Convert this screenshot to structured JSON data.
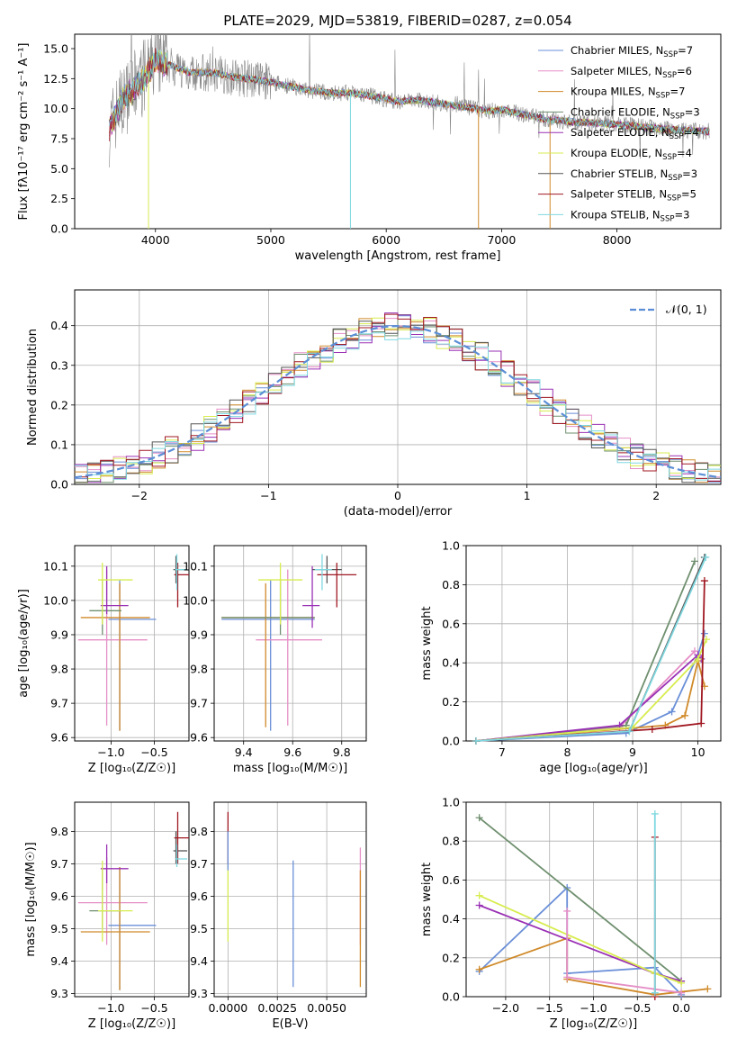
{
  "colors": {
    "Chabrier MILES": "#6a8fd8",
    "Salpeter MILES": "#e58fc6",
    "Kroupa MILES": "#d08a2a",
    "Chabrier ELODIE": "#6f8f6f",
    "Salpeter ELODIE": "#9a30b5",
    "Kroupa ELODIE": "#d8ec50",
    "Chabrier STELIB": "#555555",
    "Salpeter STELIB": "#a01822",
    "Kroupa STELIB": "#7fd8e0",
    "spectrum": "#888888",
    "gauss": "#5b8ed6"
  },
  "chart_data": [
    {
      "id": "spectrum",
      "type": "line",
      "title": "PLATE=2029, MJD=53819, FIBERID=0287, z=0.054",
      "xlabel": "wavelength [Angstrom, rest frame]",
      "ylabel": "Flux [fλ10⁻¹⁷ erg cm⁻² s⁻¹ A⁻¹]",
      "xlim": [
        3300,
        8900
      ],
      "ylim": [
        0,
        16.2
      ],
      "xticks": [
        "4000",
        "5000",
        "6000",
        "7000",
        "8000"
      ],
      "yticks": [
        "0.0",
        "2.5",
        "5.0",
        "7.5",
        "10.0",
        "12.5",
        "15.0"
      ],
      "legend": [
        "Chabrier MILES, N_SSP=7",
        "Salpeter MILES, N_SSP=6",
        "Kroupa MILES, N_SSP=7",
        "Chabrier ELODIE, N_SSP=3",
        "Salpeter ELODIE, N_SSP=4",
        "Kroupa ELODIE, N_SSP=4",
        "Chabrier STELIB, N_SSP=3",
        "Salpeter STELIB, N_SSP=5",
        "Kroupa STELIB, N_SSP=3"
      ],
      "continuum": [
        [
          3600,
          8.3
        ],
        [
          3700,
          10.5
        ],
        [
          3800,
          11.5
        ],
        [
          3900,
          12.6
        ],
        [
          4000,
          13.9
        ],
        [
          4100,
          13.7
        ],
        [
          4300,
          13.0
        ],
        [
          4500,
          13.0
        ],
        [
          4700,
          12.6
        ],
        [
          4900,
          12.4
        ],
        [
          5100,
          12.0
        ],
        [
          5300,
          11.6
        ],
        [
          5500,
          11.3
        ],
        [
          5700,
          11.3
        ],
        [
          5900,
          11.0
        ],
        [
          6100,
          10.6
        ],
        [
          6300,
          10.7
        ],
        [
          6500,
          10.4
        ],
        [
          6700,
          10.1
        ],
        [
          6900,
          9.8
        ],
        [
          7000,
          9.9
        ],
        [
          7200,
          9.5
        ],
        [
          7400,
          9.1
        ],
        [
          7600,
          8.9
        ],
        [
          7800,
          8.8
        ],
        [
          8000,
          8.7
        ],
        [
          8200,
          8.5
        ],
        [
          8400,
          8.3
        ],
        [
          8600,
          8.2
        ],
        [
          8800,
          8.1
        ]
      ]
    },
    {
      "id": "residuals",
      "type": "step",
      "xlabel": "(data-model)/error",
      "ylabel": "Normed distribution",
      "xlim": [
        -2.5,
        2.5
      ],
      "ylim": [
        0,
        0.49
      ],
      "xticks": [
        "−2",
        "−1",
        "0",
        "1",
        "2"
      ],
      "yticks": [
        "0.0",
        "0.1",
        "0.2",
        "0.3",
        "0.4"
      ],
      "legend": "𝒩(0, 1)",
      "bins_from": -2.5,
      "bin_width": 0.1
    },
    {
      "id": "age-vs-Z",
      "type": "errorbar",
      "xlabel": "Z [log₁₀(Z/Z☉)]",
      "ylabel": "age  [log₁₀(age/yr)]",
      "xlim": [
        -1.42,
        -0.1
      ],
      "ylim": [
        9.59,
        10.16
      ],
      "xticks": [
        "−1.0",
        "−0.5"
      ],
      "yticks": [
        "9.6",
        "9.7",
        "9.8",
        "9.9",
        "10.0",
        "10.1"
      ],
      "points": [
        {
          "m": "Chabrier MILES",
          "x": -0.9,
          "xe": [
            -1.03,
            -0.48
          ],
          "y": 9.945,
          "ye": [
            9.62,
            10.06
          ]
        },
        {
          "m": "Salpeter MILES",
          "x": -1.05,
          "xe": [
            -1.38,
            -0.58
          ],
          "y": 9.885,
          "ye": [
            9.635,
            10.09
          ]
        },
        {
          "m": "Kroupa MILES",
          "x": -0.9,
          "xe": [
            -1.35,
            -0.55
          ],
          "y": 9.95,
          "ye": [
            9.62,
            10.05
          ]
        },
        {
          "m": "Chabrier ELODIE",
          "x": -1.1,
          "xe": [
            -1.25,
            -0.88
          ],
          "y": 9.97,
          "ye": [
            9.9,
            10.06
          ]
        },
        {
          "m": "Salpeter ELODIE",
          "x": -1.05,
          "xe": [
            -1.12,
            -0.8
          ],
          "y": 9.985,
          "ye": [
            9.96,
            10.1
          ]
        },
        {
          "m": "Kroupa ELODIE",
          "x": -1.1,
          "xe": [
            -1.15,
            -0.75
          ],
          "y": 10.06,
          "ye": [
            9.93,
            10.11
          ]
        },
        {
          "m": "Chabrier STELIB",
          "x": -0.25,
          "xe": [
            -0.28,
            -0.12
          ],
          "y": 10.09,
          "ye": [
            10.05,
            10.13
          ]
        },
        {
          "m": "Salpeter STELIB",
          "x": -0.23,
          "xe": [
            -0.27,
            -0.1
          ],
          "y": 10.075,
          "ye": [
            9.98,
            10.11
          ]
        },
        {
          "m": "Kroupa STELIB",
          "x": -0.24,
          "xe": [
            -0.26,
            -0.12
          ],
          "y": 10.09,
          "ye": [
            10.03,
            10.135
          ]
        }
      ]
    },
    {
      "id": "age-vs-mass",
      "type": "errorbar",
      "xlabel": "mass [log₁₀(M/M☉)]",
      "ylabel": "",
      "xlim": [
        9.28,
        9.9
      ],
      "ylim": [
        9.59,
        10.16
      ],
      "xticks": [
        "9.4",
        "9.6",
        "9.8"
      ],
      "yticks": [
        "9.6",
        "9.7",
        "9.8",
        "9.9",
        "10.0",
        "10.1"
      ],
      "points": [
        {
          "m": "Chabrier MILES",
          "x": 9.51,
          "xe": [
            9.31,
            9.69
          ],
          "y": 9.945,
          "ye": [
            9.62,
            10.06
          ]
        },
        {
          "m": "Salpeter MILES",
          "x": 9.58,
          "xe": [
            9.45,
            9.72
          ],
          "y": 9.885,
          "ye": [
            9.635,
            10.09
          ]
        },
        {
          "m": "Kroupa MILES",
          "x": 9.49,
          "xe": [
            9.31,
            9.69
          ],
          "y": 9.95,
          "ye": [
            9.63,
            10.05
          ]
        },
        {
          "m": "Chabrier ELODIE",
          "x": 9.55,
          "xe": [
            9.31,
            9.69
          ],
          "y": 9.95,
          "ye": [
            9.9,
            10.06
          ]
        },
        {
          "m": "Salpeter ELODIE",
          "x": 9.68,
          "xe": [
            9.64,
            9.71
          ],
          "y": 9.985,
          "ye": [
            9.92,
            10.1
          ]
        },
        {
          "m": "Kroupa ELODIE",
          "x": 9.55,
          "xe": [
            9.46,
            9.64
          ],
          "y": 10.06,
          "ye": [
            9.93,
            10.11
          ]
        },
        {
          "m": "Chabrier STELIB",
          "x": 9.74,
          "xe": [
            9.68,
            9.8
          ],
          "y": 10.09,
          "ye": [
            10.05,
            10.13
          ]
        },
        {
          "m": "Salpeter STELIB",
          "x": 9.78,
          "xe": [
            9.7,
            9.86
          ],
          "y": 10.075,
          "ye": [
            9.98,
            10.11
          ]
        },
        {
          "m": "Kroupa STELIB",
          "x": 9.72,
          "xe": [
            9.69,
            9.76
          ],
          "y": 10.09,
          "ye": [
            10.03,
            10.135
          ]
        }
      ]
    },
    {
      "id": "weight-vs-age",
      "type": "line",
      "xlabel": "age  [log₁₀(age/yr)]",
      "ylabel": "mass weight",
      "xlim": [
        6.45,
        10.35
      ],
      "ylim": [
        0,
        1.0
      ],
      "xticks": [
        "7",
        "8",
        "9",
        "10"
      ],
      "yticks": [
        "0.0",
        "0.2",
        "0.4",
        "0.6",
        "0.8",
        "1.0"
      ],
      "series": [
        {
          "m": "Chabrier MILES",
          "pts": [
            [
              6.6,
              0
            ],
            [
              8.9,
              0.04
            ],
            [
              9.6,
              0.15
            ],
            [
              10.0,
              0.44
            ],
            [
              10.1,
              0.55
            ]
          ]
        },
        {
          "m": "Salpeter MILES",
          "pts": [
            [
              6.6,
              0
            ],
            [
              8.8,
              0.07
            ],
            [
              9.95,
              0.46
            ]
          ]
        },
        {
          "m": "Kroupa MILES",
          "pts": [
            [
              6.6,
              0
            ],
            [
              9.5,
              0.08
            ],
            [
              9.8,
              0.13
            ],
            [
              10.0,
              0.41
            ],
            [
              10.1,
              0.28
            ]
          ]
        },
        {
          "m": "Chabrier ELODIE",
          "pts": [
            [
              6.6,
              0
            ],
            [
              8.9,
              0.08
            ],
            [
              9.95,
              0.92
            ]
          ]
        },
        {
          "m": "Salpeter ELODIE",
          "pts": [
            [
              6.6,
              0
            ],
            [
              8.8,
              0.08
            ],
            [
              10.0,
              0.44
            ],
            [
              10.05,
              0.42
            ]
          ]
        },
        {
          "m": "Kroupa ELODIE",
          "pts": [
            [
              6.6,
              0
            ],
            [
              9.0,
              0.07
            ],
            [
              10.0,
              0.42
            ],
            [
              10.13,
              0.52
            ]
          ]
        },
        {
          "m": "Chabrier STELIB",
          "pts": [
            [
              6.6,
              0
            ],
            [
              8.95,
              0.05
            ],
            [
              10.1,
              0.94
            ]
          ]
        },
        {
          "m": "Salpeter STELIB",
          "pts": [
            [
              6.6,
              0
            ],
            [
              9.3,
              0.06
            ],
            [
              10.05,
              0.09
            ],
            [
              10.1,
              0.82
            ]
          ]
        },
        {
          "m": "Kroupa STELIB",
          "pts": [
            [
              6.6,
              0
            ],
            [
              8.95,
              0.05
            ],
            [
              10.12,
              0.94
            ]
          ]
        }
      ]
    },
    {
      "id": "mass-vs-Z",
      "type": "errorbar",
      "xlabel": "Z [log₁₀(Z/Z☉)]",
      "ylabel": "mass [log₁₀(M/M☉)]",
      "xlim": [
        -1.42,
        -0.1
      ],
      "ylim": [
        9.29,
        9.89
      ],
      "xticks": [
        "−1.0",
        "−0.5"
      ],
      "yticks": [
        "9.3",
        "9.4",
        "9.5",
        "9.6",
        "9.7",
        "9.8"
      ],
      "points": [
        {
          "m": "Chabrier MILES",
          "x": -0.9,
          "xe": [
            -1.03,
            -0.48
          ],
          "y": 9.51,
          "ye": [
            9.31,
            9.69
          ]
        },
        {
          "m": "Salpeter MILES",
          "x": -1.05,
          "xe": [
            -1.38,
            -0.58
          ],
          "y": 9.58,
          "ye": [
            9.45,
            9.72
          ]
        },
        {
          "m": "Kroupa MILES",
          "x": -0.9,
          "xe": [
            -1.35,
            -0.55
          ],
          "y": 9.49,
          "ye": [
            9.31,
            9.69
          ]
        },
        {
          "m": "Chabrier ELODIE",
          "x": -1.1,
          "xe": [
            -1.25,
            -0.88
          ],
          "y": 9.555,
          "ye": [
            9.5,
            9.69
          ]
        },
        {
          "m": "Salpeter ELODIE",
          "x": -1.05,
          "xe": [
            -1.12,
            -0.8
          ],
          "y": 9.685,
          "ye": [
            9.64,
            9.76
          ]
        },
        {
          "m": "Kroupa ELODIE",
          "x": -1.1,
          "xe": [
            -1.15,
            -0.75
          ],
          "y": 9.555,
          "ye": [
            9.46,
            9.71
          ]
        },
        {
          "m": "Chabrier STELIB",
          "x": -0.25,
          "xe": [
            -0.28,
            -0.12
          ],
          "y": 9.74,
          "ye": [
            9.7,
            9.8
          ]
        },
        {
          "m": "Salpeter STELIB",
          "x": -0.23,
          "xe": [
            -0.27,
            -0.1
          ],
          "y": 9.78,
          "ye": [
            9.7,
            9.86
          ]
        },
        {
          "m": "Kroupa STELIB",
          "x": -0.24,
          "xe": [
            -0.26,
            -0.12
          ],
          "y": 9.715,
          "ye": [
            9.69,
            9.76
          ]
        }
      ]
    },
    {
      "id": "mass-vs-ebv",
      "type": "errorbar",
      "xlabel": "E(B-V)",
      "ylabel": "",
      "xlim": [
        -0.0007,
        0.007
      ],
      "ylim": [
        9.29,
        9.89
      ],
      "xticks": [
        "0.0000",
        "0.0025",
        "0.0050"
      ],
      "yticks": [
        "9.3",
        "9.4",
        "9.5",
        "9.6",
        "9.7",
        "9.8"
      ],
      "points": [
        {
          "m": "Chabrier MILES",
          "x": 0.0033,
          "y": 9.51,
          "ye": [
            9.32,
            9.71
          ]
        },
        {
          "m": "Salpeter MILES",
          "x": 0.0067,
          "y": 9.6,
          "ye": [
            9.45,
            9.75
          ]
        },
        {
          "m": "Kroupa MILES",
          "x": 0.0067,
          "y": 9.5,
          "ye": [
            9.32,
            9.68
          ]
        },
        {
          "m": "Kroupa ELODIE",
          "x": 0.0,
          "y": 9.56,
          "ye": [
            9.46,
            9.7
          ]
        },
        {
          "m": "Salpeter STELIB",
          "x": 0.0,
          "y": 9.78,
          "ye": [
            9.7,
            9.86
          ]
        },
        {
          "m": "Chabrier MILES",
          "x": 0.0,
          "y": 9.74,
          "ye": [
            9.68,
            9.8
          ]
        }
      ]
    },
    {
      "id": "weight-vs-Z",
      "type": "line",
      "xlabel": "Z [log₁₀(Z/Z☉)]",
      "ylabel": "mass weight",
      "xlim": [
        -2.45,
        0.45
      ],
      "ylim": [
        0,
        1.0
      ],
      "xticks": [
        "−2.0",
        "−1.5",
        "−1.0",
        "−0.5",
        "0.0"
      ],
      "yticks": [
        "0.0",
        "0.2",
        "0.4",
        "0.6",
        "0.8",
        "1.0"
      ],
      "series": [
        {
          "m": "Chabrier MILES",
          "pts": [
            [
              -2.3,
              0.13
            ],
            [
              -1.3,
              0.56
            ],
            [
              -1.3,
              0.12
            ],
            [
              -0.3,
              0.15
            ],
            [
              0,
              0.01
            ]
          ]
        },
        {
          "m": "Kroupa MILES",
          "pts": [
            [
              -2.3,
              0.14
            ],
            [
              -1.3,
              0.3
            ],
            [
              -1.3,
              0.09
            ],
            [
              -0.3,
              0.01
            ],
            [
              0.3,
              0.04
            ]
          ]
        },
        {
          "m": "Chabrier ELODIE",
          "pts": [
            [
              -2.3,
              0.92
            ],
            [
              0,
              0.08
            ]
          ]
        },
        {
          "m": "Salpeter ELODIE",
          "pts": [
            [
              -2.3,
              0.47
            ],
            [
              -0.3,
              0.12
            ],
            [
              0,
              0.08
            ]
          ]
        },
        {
          "m": "Kroupa ELODIE",
          "pts": [
            [
              -2.3,
              0.52
            ],
            [
              -0.3,
              0.12
            ],
            [
              0,
              0.07
            ]
          ]
        },
        {
          "m": "Salpeter MILES",
          "pts": [
            [
              -1.3,
              0.44
            ],
            [
              -1.3,
              0.1
            ],
            [
              0,
              0.02
            ]
          ]
        },
        {
          "m": "Salpeter STELIB",
          "pts": [
            [
              -0.3,
              0.82
            ],
            [
              -0.3,
              0.0
            ]
          ]
        },
        {
          "m": "Kroupa STELIB",
          "pts": [
            [
              -0.3,
              0.94
            ],
            [
              -0.3,
              0.02
            ]
          ]
        }
      ]
    }
  ]
}
